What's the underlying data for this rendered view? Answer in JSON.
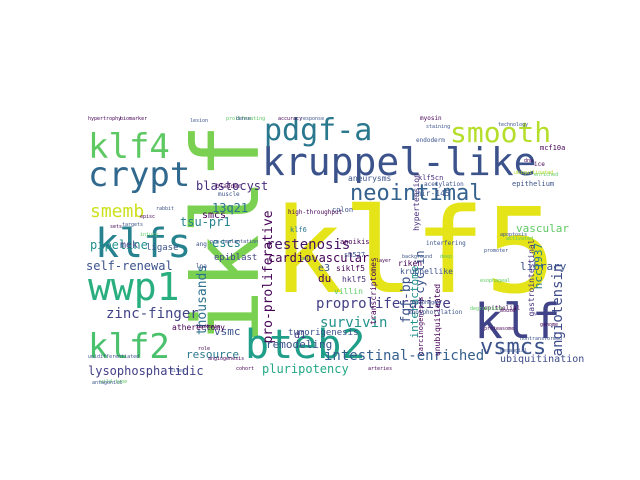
{
  "words": [
    {
      "text": "klf5",
      "color": "#e4e419"
    },
    {
      "text": "iklf",
      "color": "#7ad151"
    },
    {
      "text": "kruppel-like",
      "color": "#3b528b"
    },
    {
      "text": "bteb2",
      "color": "#1f9e89"
    },
    {
      "text": "klf",
      "color": "#404387"
    },
    {
      "text": "crypt",
      "color": "#31688e"
    },
    {
      "text": "klf4",
      "color": "#5ec962"
    },
    {
      "text": "pdgf-a",
      "color": "#2a788e"
    },
    {
      "text": "smooth",
      "color": "#b5de2b"
    },
    {
      "text": "klfs",
      "color": "#26828e"
    },
    {
      "text": "wwp1",
      "color": "#29af7f"
    },
    {
      "text": "klf2",
      "color": "#4ac16d"
    },
    {
      "text": "neointimal",
      "color": "#34618d"
    },
    {
      "text": "vsmcs",
      "color": "#3b528b"
    },
    {
      "text": "proproliferative",
      "color": "#433e85"
    },
    {
      "text": "intestinal-enriched",
      "color": "#355f8d"
    },
    {
      "text": "smemb",
      "color": "#cde11d"
    },
    {
      "text": "angiotensin",
      "color": "#3e4a89"
    },
    {
      "text": "pro-proliferative",
      "color": "#440154"
    },
    {
      "text": "zinc-finger",
      "color": "#414487"
    },
    {
      "text": "restenosis",
      "color": "#471365"
    },
    {
      "text": "survivin",
      "color": "#21918c"
    },
    {
      "text": "cardiovascular",
      "color": "#440154"
    },
    {
      "text": "fgf-bp",
      "color": "#3b528b"
    },
    {
      "text": "pluripotency",
      "color": "#22a884"
    },
    {
      "text": "lysophosphatidic",
      "color": "#424086"
    },
    {
      "text": "thousands",
      "color": "#2d708e"
    },
    {
      "text": "self-renewal",
      "color": "#3b528b"
    },
    {
      "text": "blastocyst",
      "color": "#472d7b"
    },
    {
      "text": "13q21",
      "color": "#2c728e"
    },
    {
      "text": "tsu-pr1",
      "color": "#26828e"
    },
    {
      "text": "pipeline",
      "color": "#21918c"
    },
    {
      "text": "escs",
      "color": "#26828e"
    },
    {
      "text": "remodeling",
      "color": "#3b528b"
    },
    {
      "text": "resource",
      "color": "#2a788e"
    },
    {
      "text": "vascular",
      "color": "#5ec962"
    },
    {
      "text": "library",
      "color": "#3b528b"
    },
    {
      "text": "ubiquitination",
      "color": "#3e4a89"
    },
    {
      "text": "cyclin",
      "color": "#3b528b"
    },
    {
      "text": "interactome",
      "color": "#21918c"
    },
    {
      "text": "hcc1937",
      "color": "#2a788e"
    },
    {
      "text": "smcs",
      "color": "#440154"
    },
    {
      "text": "mek",
      "color": "#3e4a89"
    },
    {
      "text": "ligase",
      "color": "#3b528b"
    },
    {
      "text": "epiblast",
      "color": "#414487"
    },
    {
      "text": "vsmc",
      "color": "#3b528b"
    },
    {
      "text": "du",
      "color": "#440154"
    },
    {
      "text": "d1",
      "color": "#46337e"
    },
    {
      "text": "e3",
      "color": "#3b528b"
    },
    {
      "text": "tumorigenesis",
      "color": "#3b528b"
    },
    {
      "text": "atherectomy",
      "color": "#440154"
    },
    {
      "text": "gastrointestinal",
      "color": "#46327e"
    },
    {
      "text": "transcriptomes",
      "color": "#440154"
    },
    {
      "text": "mir-145",
      "color": "#3b528b"
    },
    {
      "text": "hypertension",
      "color": "#472d7b"
    },
    {
      "text": "unubiquitinated",
      "color": "#440154"
    },
    {
      "text": "kruppellike",
      "color": "#3b528b"
    },
    {
      "text": "carcinogenesis",
      "color": "#440154"
    },
    {
      "text": "klf5cn",
      "color": "#472d7b"
    },
    {
      "text": "aneurysms",
      "color": "#3b528b"
    },
    {
      "text": "siklf5",
      "color": "#440154"
    },
    {
      "text": "hklf5",
      "color": "#472d7b"
    },
    {
      "text": "villin",
      "color": "#5ec962"
    },
    {
      "text": "riken",
      "color": "#440154"
    },
    {
      "text": "epithelium",
      "color": "#3b528b"
    },
    {
      "text": "mcf10a",
      "color": "#440154"
    },
    {
      "text": "klf6",
      "color": "#2a788e"
    },
    {
      "text": "colon",
      "color": "#3b528b"
    },
    {
      "text": "anoikis",
      "color": "#440154"
    },
    {
      "text": "sm527",
      "color": "#3b528b"
    },
    {
      "text": "ang",
      "color": "#3b528b"
    },
    {
      "text": "lpa",
      "color": "#3b528b"
    },
    {
      "text": "phosphorylation",
      "color": "#3b528b"
    },
    {
      "text": "myosin",
      "color": "#440154"
    },
    {
      "text": "bladder",
      "color": "#440154"
    },
    {
      "text": "muscle",
      "color": "#3b528b"
    },
    {
      "text": "epithelial",
      "color": "#440154"
    },
    {
      "text": "acetylation",
      "color": "#3b528b"
    },
    {
      "text": "ice",
      "color": "#440154"
    },
    {
      "text": "endoderm",
      "color": "#3b528b"
    },
    {
      "text": "high-throughput",
      "color": "#440154"
    },
    {
      "text": "interfering",
      "color": "#3b528b"
    },
    {
      "text": "phosphogen",
      "color": "#3b528b"
    },
    {
      "text": "esophageal",
      "color": "#5ec962"
    },
    {
      "text": "unidifferentiated",
      "color": "#3b528b"
    },
    {
      "text": "pre-implantation",
      "color": "#3b528b"
    },
    {
      "text": "hypertrophy",
      "color": "#440154"
    },
    {
      "text": "biomarker",
      "color": "#440154"
    },
    {
      "text": "proliferating",
      "color": "#5ec962"
    },
    {
      "text": "leukemia",
      "color": "#440154"
    },
    {
      "text": "staining",
      "color": "#3b528b"
    },
    {
      "text": "technology",
      "color": "#3b528b"
    },
    {
      "text": "degradation",
      "color": "#5ec962"
    },
    {
      "text": "proteasome",
      "color": "#440154"
    },
    {
      "text": "activated",
      "color": "#5ec962"
    },
    {
      "text": "dense",
      "color": "#3b528b"
    },
    {
      "text": "genome",
      "color": "#440154"
    },
    {
      "text": "nontransformed",
      "color": "#3b528b"
    },
    {
      "text": "dna",
      "color": "#440154"
    },
    {
      "text": "enriched",
      "color": "#5ec962"
    },
    {
      "text": "promoter",
      "color": "#3b528b"
    },
    {
      "text": "ubiquitinated",
      "color": "#b5de2b"
    },
    {
      "text": "background",
      "color": "#3b528b"
    },
    {
      "text": "layer",
      "color": "#440154"
    },
    {
      "text": "angiogenesis",
      "color": "#440154"
    },
    {
      "text": "wild-type",
      "color": "#5ec962"
    },
    {
      "text": "sites",
      "color": "#3b528b"
    },
    {
      "text": "role",
      "color": "#440154"
    },
    {
      "text": "rabbit",
      "color": "#3b528b"
    },
    {
      "text": "episc",
      "color": "#440154"
    },
    {
      "text": "targets",
      "color": "#3b528b"
    },
    {
      "text": "sets",
      "color": "#440154"
    },
    {
      "text": "antagonist",
      "color": "#3b528b"
    },
    {
      "text": "injury",
      "color": "#5ec962"
    },
    {
      "text": "apoptosis",
      "color": "#3b528b"
    },
    {
      "text": "accuracy",
      "color": "#440154"
    },
    {
      "text": "response",
      "color": "#3b528b"
    },
    {
      "text": "deep",
      "color": "#5ec962"
    },
    {
      "text": "lesion",
      "color": "#3b528b"
    },
    {
      "text": "mouse",
      "color": "#440154"
    },
    {
      "text": "cells",
      "color": "#3b528b"
    },
    {
      "text": "arteries",
      "color": "#440154"
    },
    {
      "text": "mesangial",
      "color": "#3b528b"
    },
    {
      "text": "cohort",
      "color": "#440154"
    }
  ]
}
